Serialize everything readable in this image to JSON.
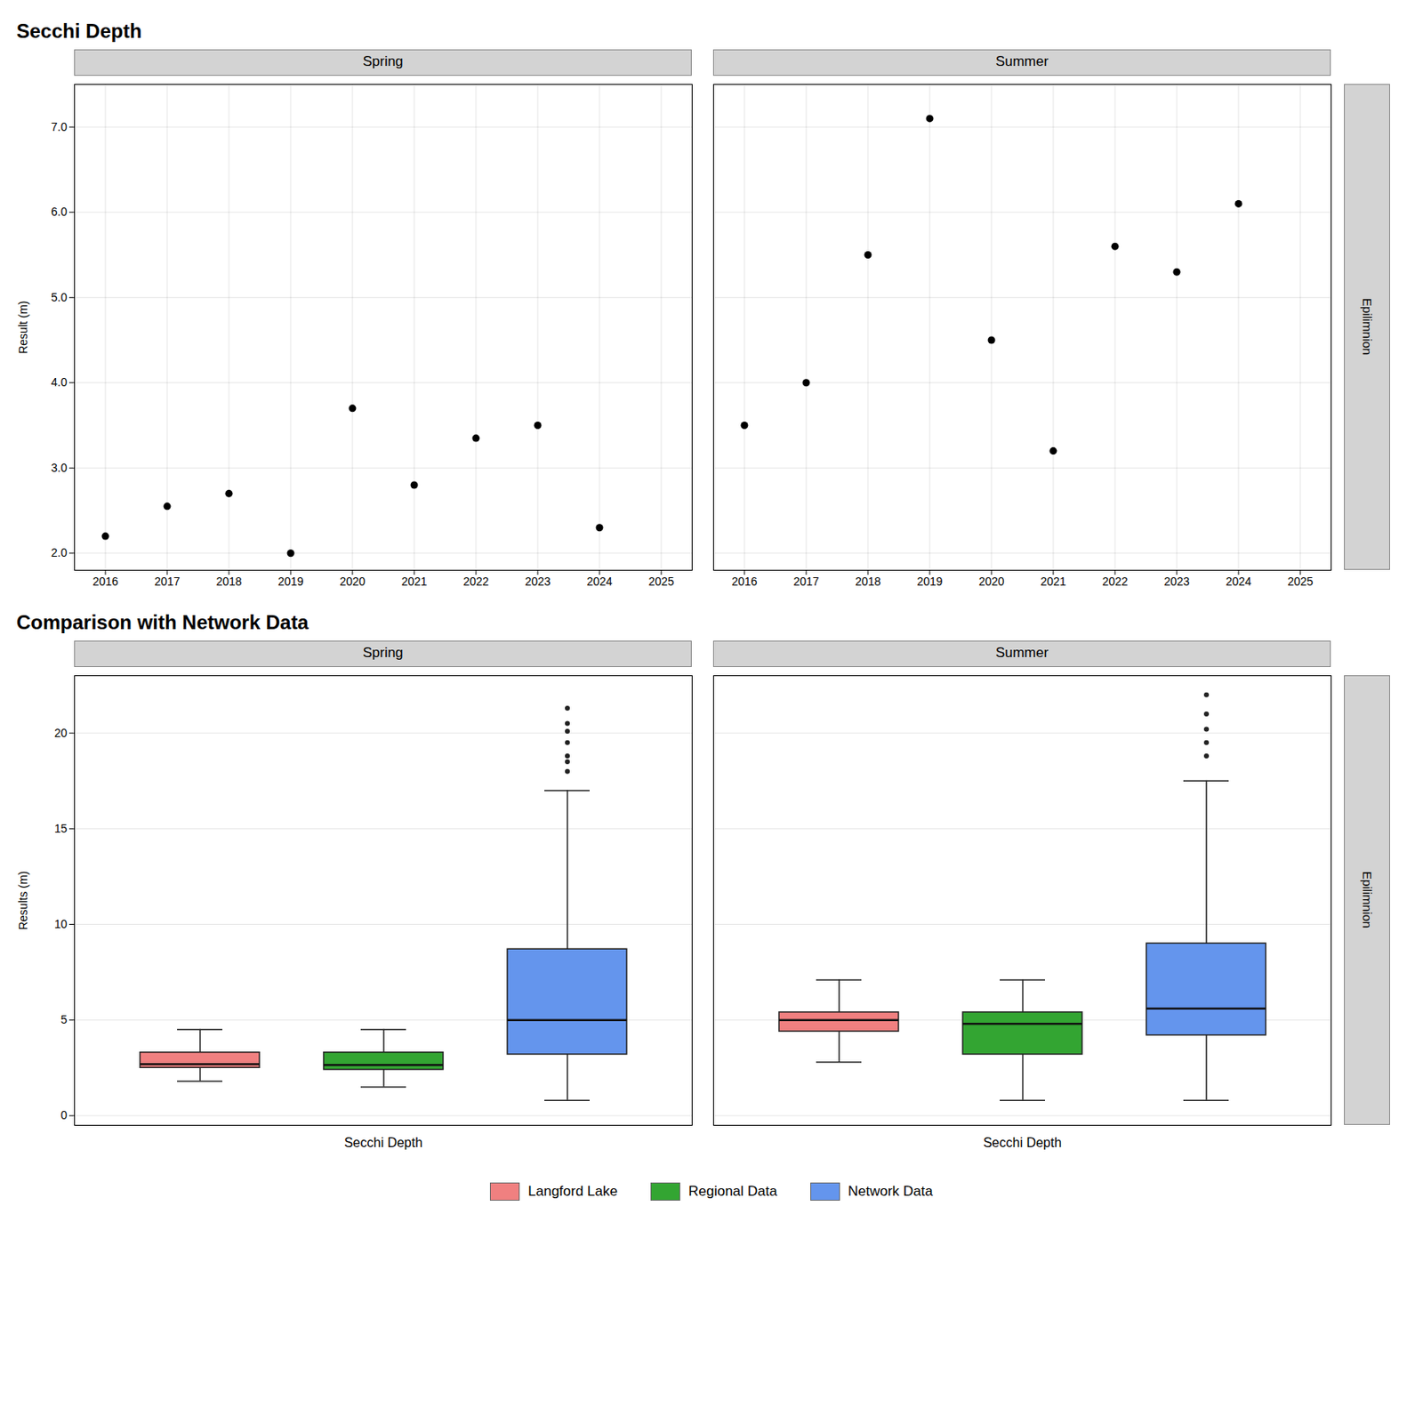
{
  "chart_data": [
    {
      "type": "scatter",
      "title": "Secchi Depth",
      "subtitle": "Spring",
      "ylabel": "Result (m)",
      "x": [
        2016,
        2017,
        2018,
        2019,
        2020,
        2021,
        2022,
        2023,
        2024
      ],
      "values": [
        2.2,
        2.55,
        2.7,
        2.0,
        3.7,
        2.8,
        3.35,
        3.5,
        2.3
      ],
      "color": "black",
      "xlim": [
        2015.5,
        2025.5
      ],
      "xticks": [
        2016,
        2017,
        2018,
        2019,
        2020,
        2021,
        2022,
        2023,
        2024,
        2025
      ],
      "ylim": [
        1.8,
        7.5
      ],
      "yticks": [
        2,
        3,
        4,
        5,
        6,
        7
      ],
      "grid": true,
      "annotations": [
        "Epilimnion"
      ]
    },
    {
      "type": "scatter",
      "title": "Secchi Depth",
      "subtitle": "Summer",
      "x": [
        2016,
        2017,
        2018,
        2019,
        2020,
        2021,
        2022,
        2023,
        2024
      ],
      "values": [
        3.5,
        4.0,
        5.5,
        7.1,
        4.5,
        3.2,
        5.6,
        5.3,
        6.1
      ],
      "color": "black",
      "xlim": [
        2015.5,
        2025.5
      ],
      "xticks": [
        2016,
        2017,
        2018,
        2019,
        2020,
        2021,
        2022,
        2023,
        2024,
        2025
      ],
      "ylim": [
        1.8,
        7.5
      ],
      "yticks": [
        2,
        3,
        4,
        5,
        6,
        7
      ],
      "grid": true,
      "tick_labels": "x",
      "annotations": [
        "Epilimnion"
      ]
    },
    {
      "type": "box",
      "title": "Comparison with Network Data",
      "subtitle": "Spring",
      "ylabel": "Results (m)",
      "categories": [
        "Secchi Depth"
      ],
      "series": [
        {
          "name": "Langford Lake",
          "color": "#F08080",
          "q1": 2.5,
          "median": 2.7,
          "q3": 3.3,
          "whislo": 1.8,
          "whishi": 4.5,
          "fliers": []
        },
        {
          "name": "Regional Data",
          "color": "#33A532",
          "q1": 2.4,
          "median": 2.65,
          "q3": 3.3,
          "whislo": 1.5,
          "whishi": 4.5,
          "fliers": []
        },
        {
          "name": "Network Data",
          "color": "#6495ED",
          "q1": 3.2,
          "median": 5.0,
          "q3": 8.7,
          "whislo": 0.8,
          "whishi": 17.0,
          "fliers": [
            18.0,
            18.5,
            18.8,
            19.5,
            20.1,
            20.5,
            21.3
          ]
        }
      ],
      "ylim": [
        -0.5,
        23
      ],
      "yticks": [
        0,
        5,
        10,
        15,
        20
      ],
      "grid": "y",
      "legend": "bottom",
      "annotations": [
        "Epilimnion"
      ]
    },
    {
      "type": "box",
      "title": "Comparison with Network Data",
      "subtitle": "Summer",
      "categories": [
        "Secchi Depth"
      ],
      "series": [
        {
          "name": "Langford Lake",
          "color": "#F08080",
          "q1": 4.4,
          "median": 5.0,
          "q3": 5.4,
          "whislo": 2.8,
          "whishi": 7.1,
          "fliers": []
        },
        {
          "name": "Regional Data",
          "color": "#33A532",
          "q1": 3.2,
          "median": 4.8,
          "q3": 5.4,
          "whislo": 0.8,
          "whishi": 7.1,
          "fliers": []
        },
        {
          "name": "Network Data",
          "color": "#6495ED",
          "q1": 4.2,
          "median": 5.6,
          "q3": 9.0,
          "whislo": 0.8,
          "whishi": 17.5,
          "fliers": [
            18.8,
            19.5,
            20.2,
            21.0,
            22.0
          ]
        }
      ],
      "ylim": [
        -0.5,
        23
      ],
      "yticks": [
        0,
        5,
        10,
        15,
        20
      ],
      "grid": "y",
      "legend": "bottom",
      "tick_labels": "x",
      "annotations": [
        "Epilimnion"
      ]
    }
  ]
}
